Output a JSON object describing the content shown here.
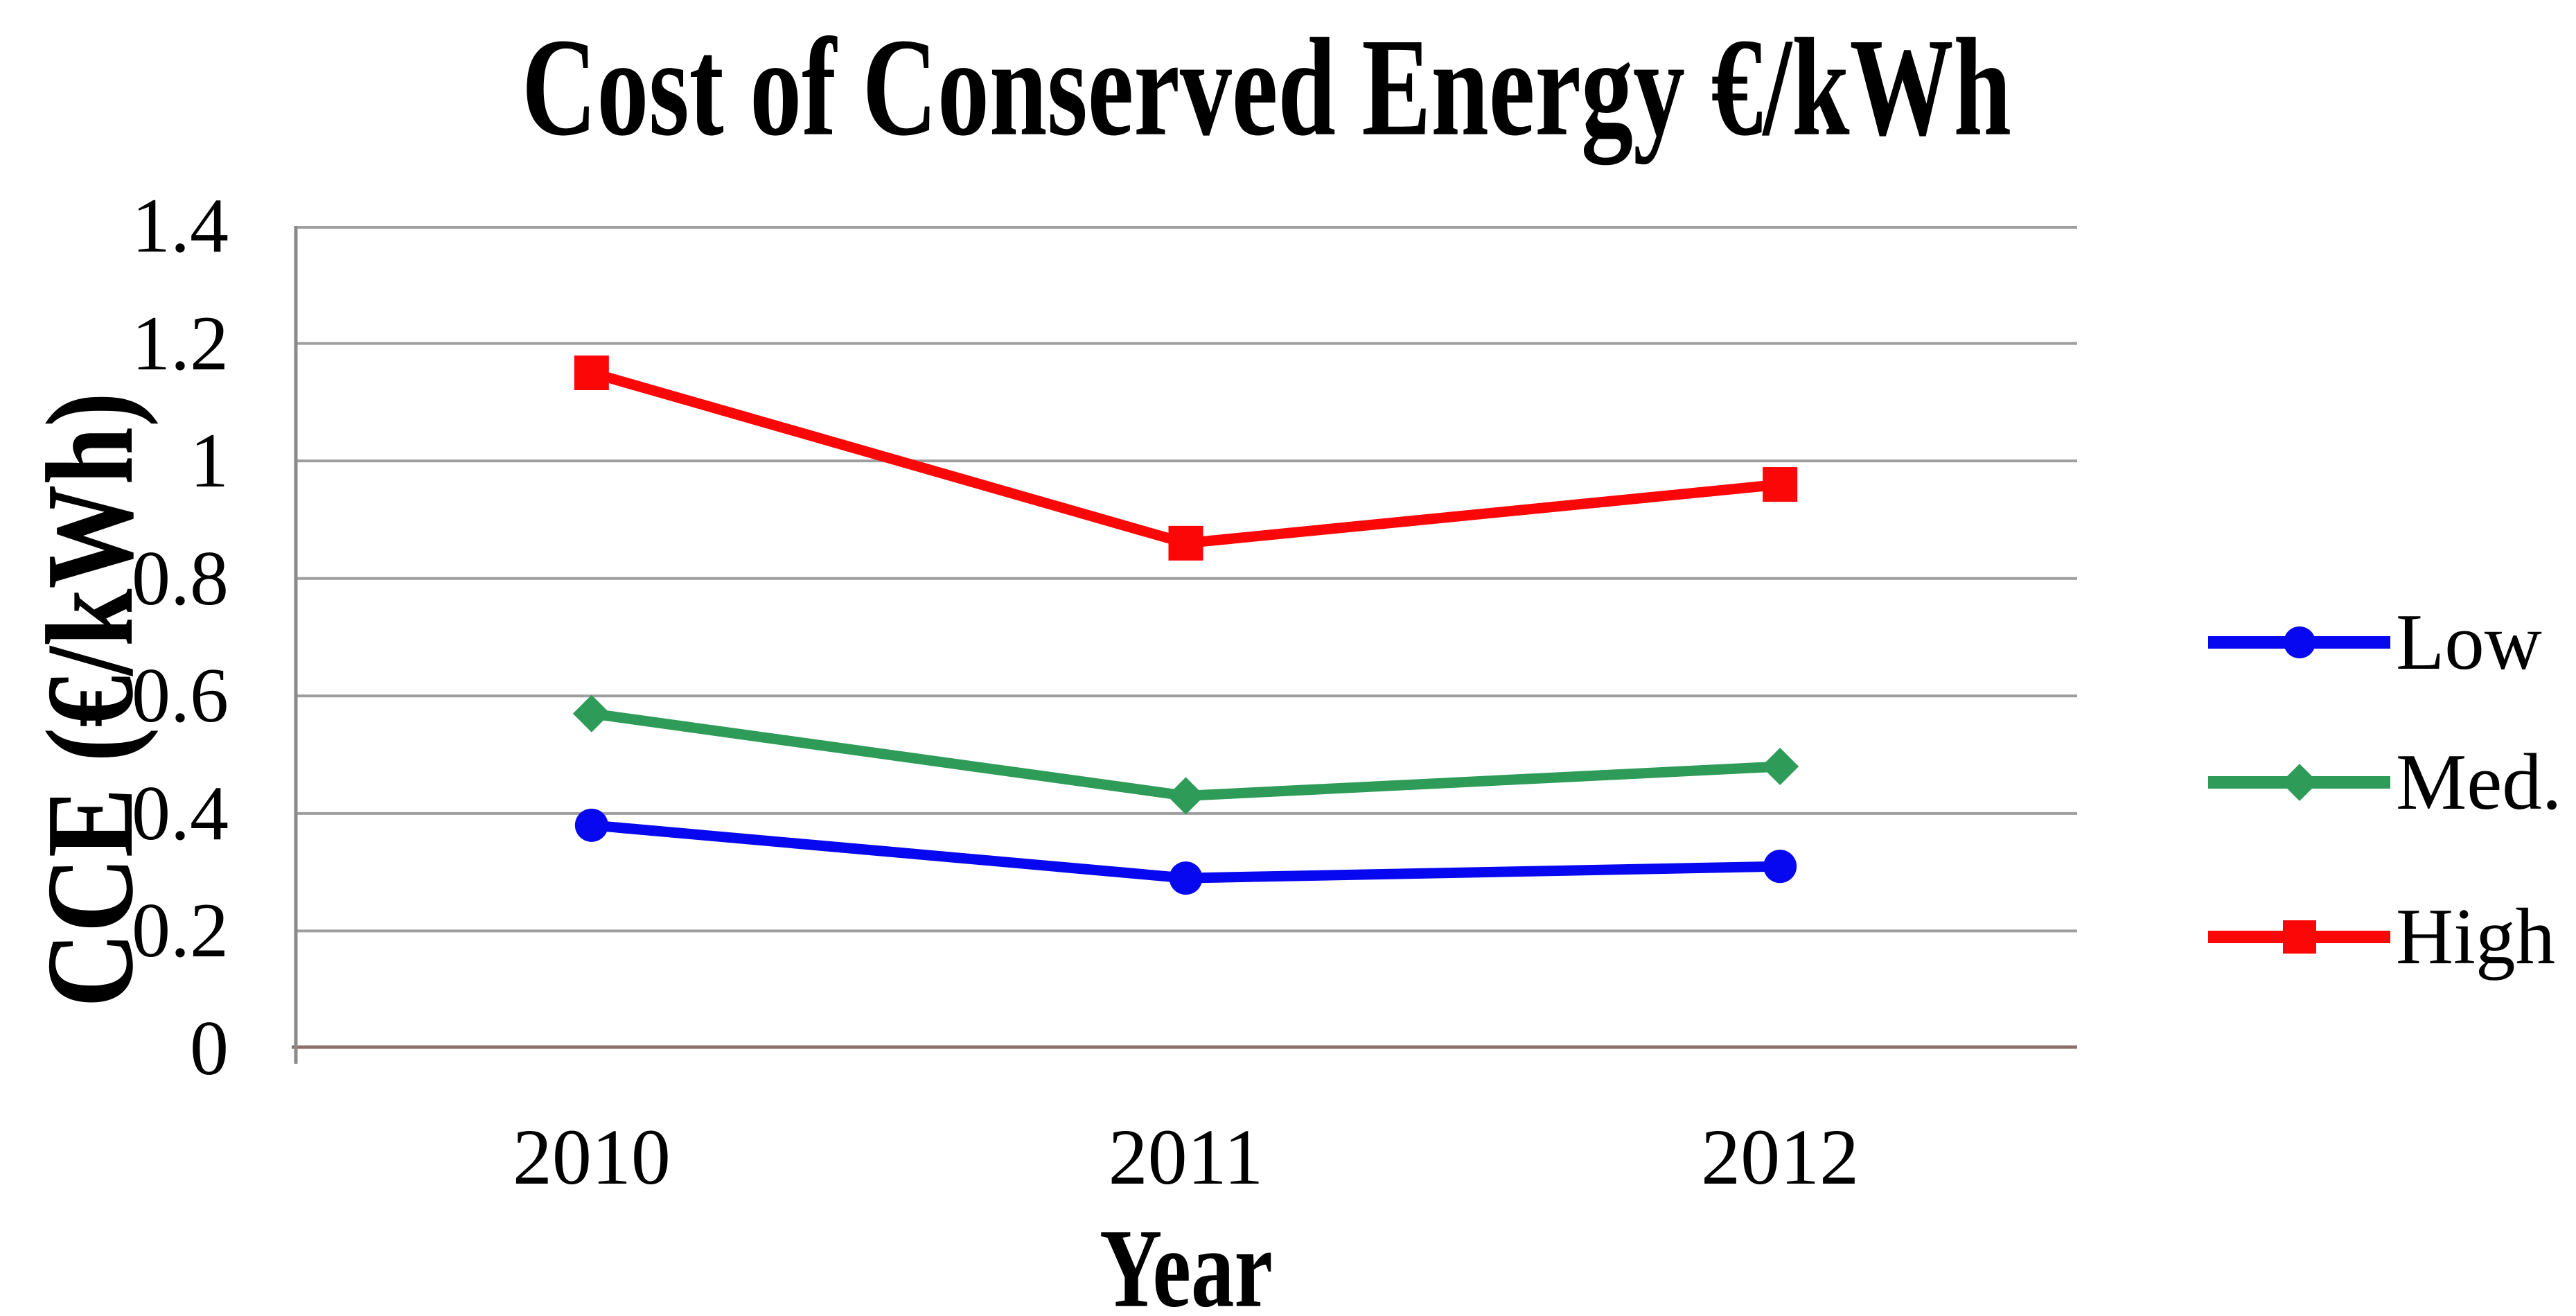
{
  "page": {
    "background": "#ffffff"
  },
  "chart_data": {
    "type": "line",
    "title": "Cost of Conserved Energy €/kWh",
    "xlabel": "Year",
    "ylabel": "CCE (€/kWh)",
    "categories": [
      "2010",
      "2011",
      "2012"
    ],
    "series": [
      {
        "name": "Low",
        "color": "#0808f0",
        "marker": "circle",
        "values": [
          0.38,
          0.29,
          0.31
        ]
      },
      {
        "name": "Med.",
        "color": "#2e9c58",
        "marker": "diamond",
        "values": [
          0.57,
          0.43,
          0.48
        ]
      },
      {
        "name": "High",
        "color": "#fb0707",
        "marker": "square",
        "values": [
          1.15,
          0.86,
          0.96
        ]
      }
    ],
    "ylim": [
      0,
      1.4
    ],
    "ytick_labels": [
      "0",
      "0.2",
      "0.4",
      "0.6",
      "0.8",
      "1",
      "1.2",
      "1.4"
    ],
    "grid": true,
    "legend_position": "right",
    "colors": {
      "gridline": "#9e9e9e",
      "axis_left": "#8a8a8a",
      "axis_bottom": "#8b6f68",
      "text": "#000000"
    }
  }
}
